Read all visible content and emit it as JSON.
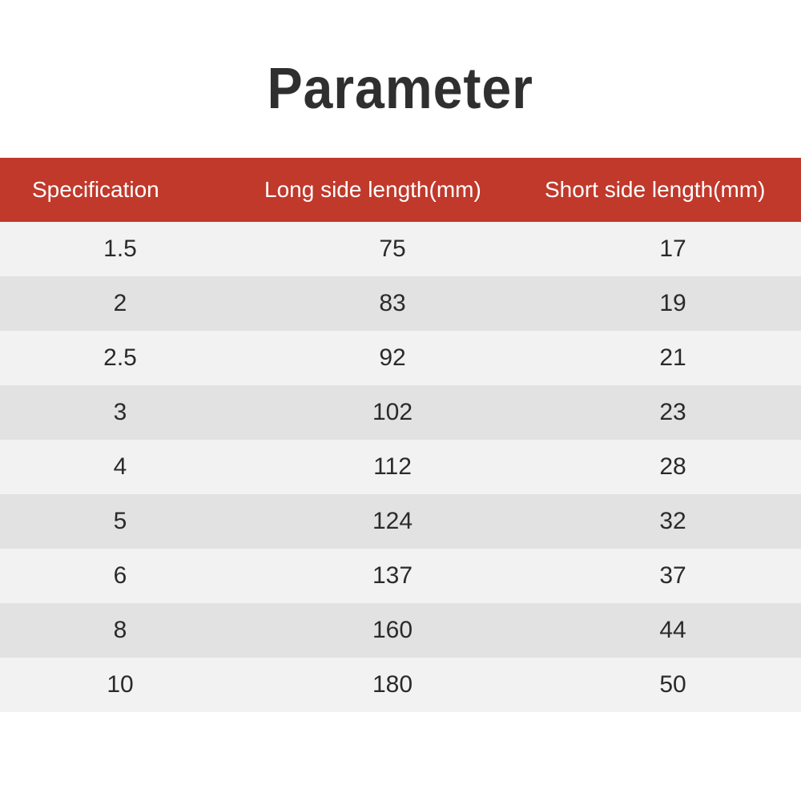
{
  "title": "Parameter",
  "title_color": "#2f2f2f",
  "title_fontsize": 72,
  "table": {
    "header_bg": "#c0392b",
    "header_color": "#ffffff",
    "row_bg_even": "#f2f2f2",
    "row_bg_odd": "#e2e2e2",
    "text_color": "#2a2a2a",
    "cell_fontsize": 30,
    "header_fontsize": 28,
    "columns": [
      "Specification",
      "Long side length(mm)",
      "Short side length(mm)"
    ],
    "rows": [
      [
        "1.5",
        "75",
        "17"
      ],
      [
        "2",
        "83",
        "19"
      ],
      [
        "2.5",
        "92",
        "21"
      ],
      [
        "3",
        "102",
        "23"
      ],
      [
        "4",
        "112",
        "28"
      ],
      [
        "5",
        "124",
        "32"
      ],
      [
        "6",
        "137",
        "37"
      ],
      [
        "8",
        "160",
        "44"
      ],
      [
        "10",
        "180",
        "50"
      ]
    ]
  }
}
